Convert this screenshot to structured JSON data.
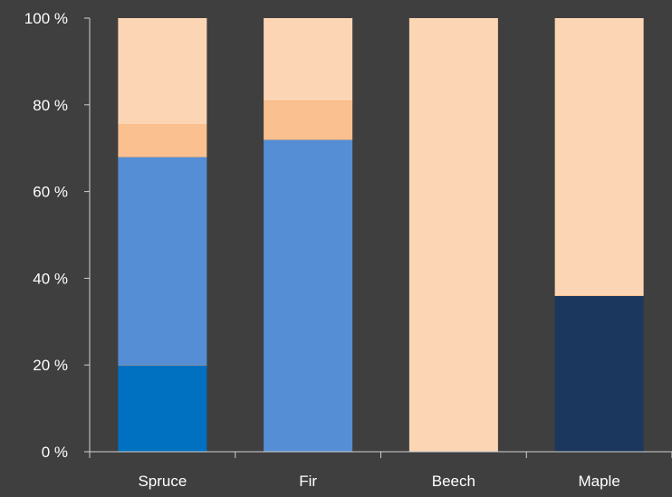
{
  "chart_data": {
    "type": "bar",
    "stacked": true,
    "percent_stacked": true,
    "categories": [
      "Spruce",
      "Fir",
      "Beech",
      "Maple"
    ],
    "series": [
      {
        "values": [
          20,
          0,
          0,
          0
        ],
        "color": "#0070c0"
      },
      {
        "values": [
          0,
          0,
          0,
          36
        ],
        "color": "#1c375e"
      },
      {
        "values": [
          48,
          72,
          0,
          0
        ],
        "color": "#558ed5"
      },
      {
        "values": [
          7.5,
          9,
          0,
          0
        ],
        "color": "#fac090"
      },
      {
        "values": [
          24.5,
          19,
          100,
          64
        ],
        "color": "#fcd5b5"
      }
    ],
    "ylim": [
      0,
      100
    ],
    "yticks": [
      0,
      20,
      40,
      60,
      80,
      100
    ],
    "ytick_labels": [
      "0 %",
      "20 %",
      "40 %",
      "60 %",
      "80 %",
      "100 %"
    ],
    "title": "",
    "xlabel": "",
    "ylabel": "",
    "grid": false,
    "legend": "none",
    "background_color": "#3f3f3f",
    "segment_border_color": "#f4a862"
  }
}
